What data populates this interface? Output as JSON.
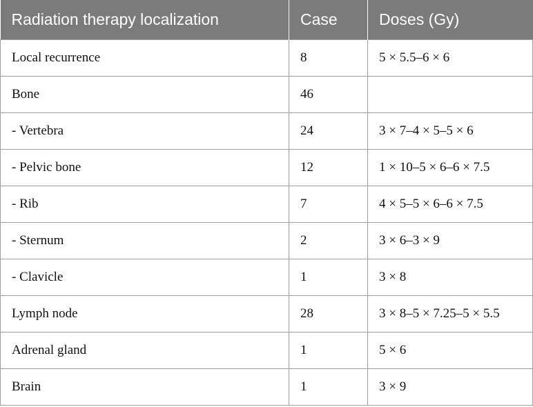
{
  "table": {
    "headers": [
      "Radiation therapy localization",
      "Case",
      "Doses (Gy)"
    ],
    "rows": [
      [
        "Local recurrence",
        "8",
        "5 × 5.5–6 × 6"
      ],
      [
        "Bone",
        "46",
        ""
      ],
      [
        "- Vertebra",
        "24",
        "3 × 7–4 × 5–5 × 6"
      ],
      [
        "- Pelvic bone",
        "12",
        "1 × 10–5 × 6–6 × 7.5"
      ],
      [
        "- Rib",
        "7",
        "4 × 5–5 × 6–6 × 7.5"
      ],
      [
        "- Sternum",
        "2",
        "3 × 6–3 × 9"
      ],
      [
        "- Clavicle",
        "1",
        "3 × 8"
      ],
      [
        "Lymph node",
        "28",
        "3 × 8–5 × 7.25–5 × 5.5"
      ],
      [
        "Adrenal gland",
        "1",
        "5 × 6"
      ],
      [
        "Brain",
        "1",
        "3 × 9"
      ]
    ]
  }
}
